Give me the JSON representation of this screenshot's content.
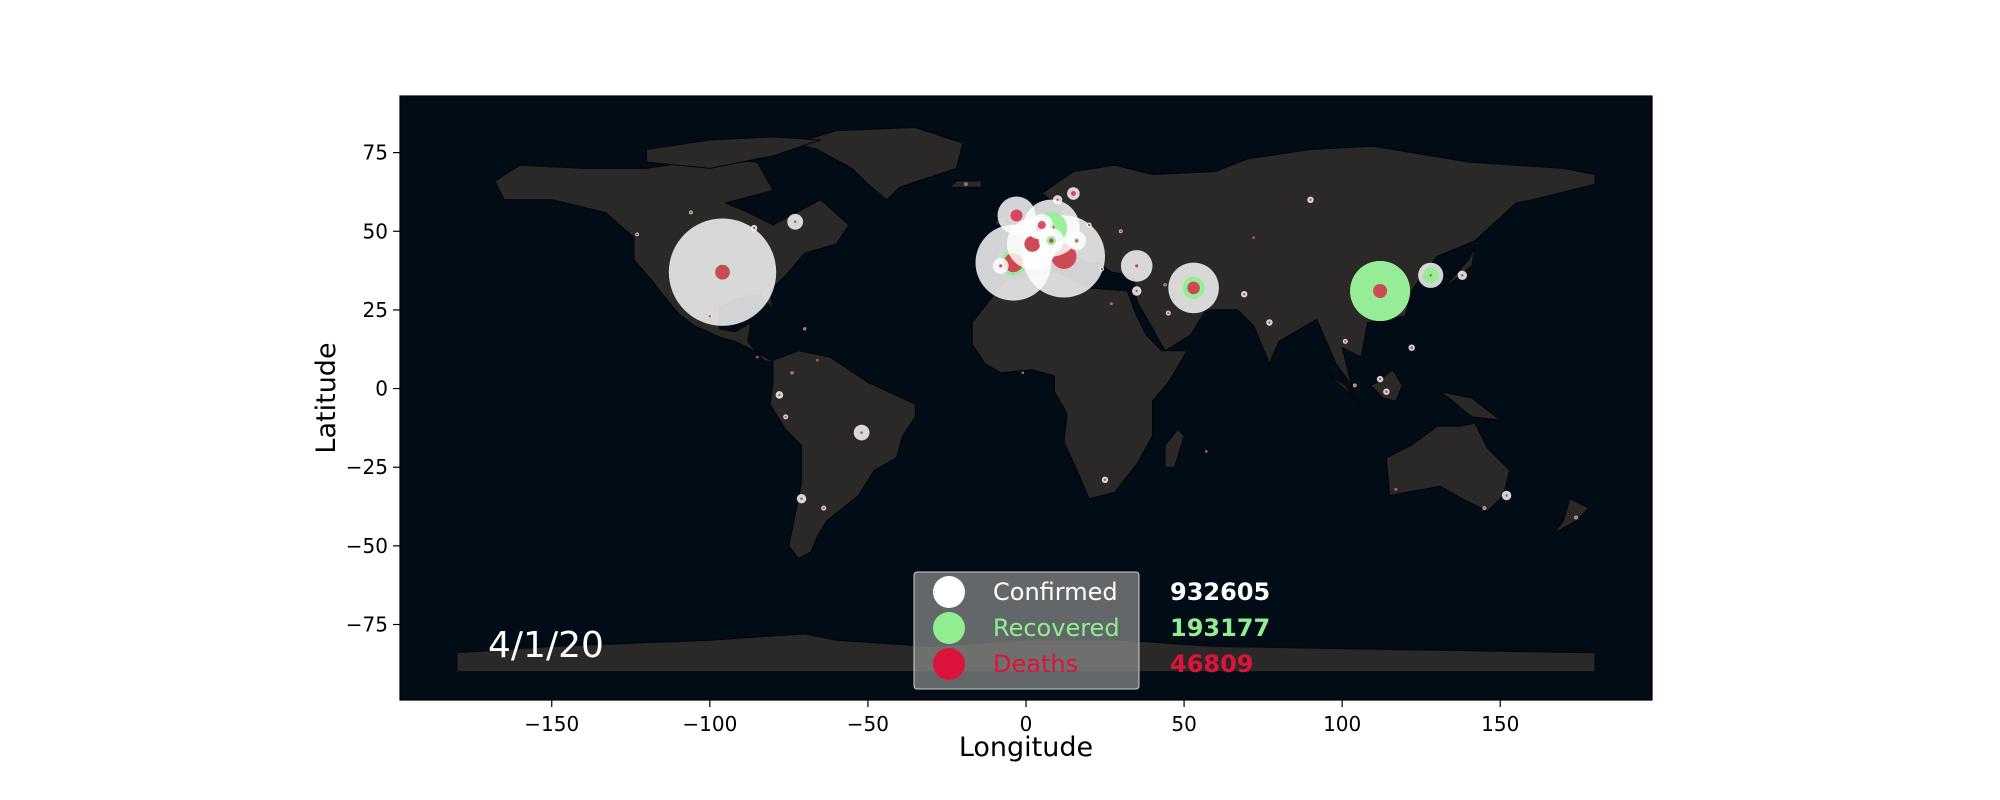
{
  "date_label": "4/1/20",
  "colors": {
    "ocean": "#020c16",
    "land": "#2a2927",
    "borders": "#050505",
    "confirmed": "#ffffff",
    "recovered": "#90ee90",
    "deaths": "#dc143c"
  },
  "legend": [
    {
      "label": "Confirmed",
      "value": "932605",
      "color": "#ffffff"
    },
    {
      "label": "Recovered",
      "value": "193177",
      "color": "#90ee90"
    },
    {
      "label": "Deaths",
      "value": "46809",
      "color": "#dc143c"
    }
  ],
  "chart_data": {
    "type": "scatter",
    "xlabel": "Longitude",
    "ylabel": "Latitude",
    "xlim": [
      -198,
      198
    ],
    "ylim": [
      -99,
      93
    ],
    "xticks": [
      -150,
      -100,
      -50,
      0,
      50,
      100,
      150
    ],
    "yticks": [
      -75,
      -50,
      -25,
      0,
      25,
      50,
      75
    ],
    "bubbles": [
      {
        "lon": -96,
        "lat": 37,
        "confirmed": 17,
        "recovered": 2.5,
        "deaths": 2.3
      },
      {
        "lon": -4,
        "lat": 40,
        "confirmed": 12,
        "recovered": 4,
        "deaths": 3
      },
      {
        "lon": 12,
        "lat": 42,
        "confirmed": 13,
        "recovered": 3.5,
        "deaths": 4
      },
      {
        "lon": 8,
        "lat": 51,
        "confirmed": 9,
        "recovered": 5,
        "deaths": 1
      },
      {
        "lon": 2,
        "lat": 46,
        "confirmed": 8,
        "recovered": 2.5,
        "deaths": 2.5
      },
      {
        "lon": -3,
        "lat": 55,
        "confirmed": 6,
        "recovered": 0.5,
        "deaths": 1.9
      },
      {
        "lon": 112,
        "lat": 31,
        "confirmed": 9.5,
        "recovered": 9.5,
        "deaths": 2.2
      },
      {
        "lon": 53,
        "lat": 32,
        "confirmed": 8,
        "recovered": 3.5,
        "deaths": 2
      },
      {
        "lon": 35,
        "lat": 39,
        "confirmed": 5,
        "recovered": 0.3,
        "deaths": 0.5
      },
      {
        "lon": 128,
        "lat": 36,
        "confirmed": 4,
        "recovered": 2.5,
        "deaths": 0.3
      },
      {
        "lon": 8,
        "lat": 47,
        "confirmed": 4,
        "recovered": 1.5,
        "deaths": 0.7
      },
      {
        "lon": 4,
        "lat": 51,
        "confirmed": 3.5,
        "recovered": 0.5,
        "deaths": 1
      },
      {
        "lon": 5,
        "lat": 52,
        "confirmed": 3.5,
        "recovered": 0.3,
        "deaths": 1.3
      },
      {
        "lon": 16,
        "lat": 47,
        "confirmed": 3,
        "recovered": 0.8,
        "deaths": 0.4
      },
      {
        "lon": -8,
        "lat": 39,
        "confirmed": 2.5,
        "recovered": 0.3,
        "deaths": 0.5
      },
      {
        "lon": 15,
        "lat": 62,
        "confirmed": 2,
        "recovered": 0.3,
        "deaths": 0.8
      },
      {
        "lon": -73,
        "lat": 53,
        "confirmed": 2.5,
        "recovered": 0.5,
        "deaths": 0.3
      },
      {
        "lon": -52,
        "lat": -14,
        "confirmed": 2.5,
        "recovered": 0.3,
        "deaths": 0.4
      },
      {
        "lon": 138,
        "lat": 36,
        "confirmed": 1.5,
        "recovered": 0.5,
        "deaths": 0.2
      },
      {
        "lon": 10,
        "lat": 60,
        "confirmed": 1.5,
        "recovered": 0.2,
        "deaths": 0.2
      },
      {
        "lon": 35,
        "lat": 31,
        "confirmed": 1.5,
        "recovered": 0.3,
        "deaths": 0.1
      },
      {
        "lon": 152,
        "lat": -34,
        "confirmed": 1.5,
        "recovered": 0.2,
        "deaths": 0.2
      },
      {
        "lon": -71,
        "lat": -35,
        "confirmed": 1.5,
        "recovered": 0.5,
        "deaths": 0.1
      },
      {
        "lon": 90,
        "lat": 60,
        "confirmed": 1,
        "recovered": 0.3,
        "deaths": 0.1
      },
      {
        "lon": 112,
        "lat": 3,
        "confirmed": 1,
        "recovered": 0.3,
        "deaths": 0.2
      },
      {
        "lon": 114,
        "lat": -1,
        "confirmed": 1,
        "recovered": 0.1,
        "deaths": 0.4
      },
      {
        "lon": 122,
        "lat": 13,
        "confirmed": 1,
        "recovered": 0.1,
        "deaths": 0.4
      },
      {
        "lon": -78,
        "lat": -2,
        "confirmed": 1.2,
        "recovered": 0.1,
        "deaths": 0.3
      },
      {
        "lon": -106,
        "lat": 56,
        "confirmed": 0.6,
        "recovered": 0.6,
        "deaths": 0.1
      },
      {
        "lon": -76,
        "lat": -9,
        "confirmed": 0.8,
        "recovered": 0.4,
        "deaths": 0.1
      },
      {
        "lon": -64,
        "lat": -38,
        "confirmed": 0.8,
        "recovered": 0.4,
        "deaths": 0.1
      },
      {
        "lon": 77,
        "lat": 21,
        "confirmed": 1,
        "recovered": 0.1,
        "deaths": 0.1
      },
      {
        "lon": 69,
        "lat": 30,
        "confirmed": 1,
        "recovered": 0.1,
        "deaths": 0.1
      },
      {
        "lon": 45,
        "lat": 24,
        "confirmed": 0.8,
        "recovered": 0.2,
        "deaths": 0.1
      },
      {
        "lon": 25,
        "lat": -29,
        "confirmed": 1,
        "recovered": 0.1,
        "deaths": 0.1
      },
      {
        "lon": 105,
        "lat": 61,
        "confirmed": 0,
        "recovered": 0,
        "deaths": 0
      },
      {
        "lon": -86,
        "lat": 51,
        "confirmed": 1,
        "recovered": 0.1,
        "deaths": 0.2
      },
      {
        "lon": -123,
        "lat": 49,
        "confirmed": 0.6,
        "recovered": 0.1,
        "deaths": 0.1
      },
      {
        "lon": 101,
        "lat": 15,
        "confirmed": 0.8,
        "recovered": 0.3,
        "deaths": 0.1
      },
      {
        "lon": 104,
        "lat": 1,
        "confirmed": 0.6,
        "recovered": 0.3,
        "deaths": 0.1
      },
      {
        "lon": 174,
        "lat": -41,
        "confirmed": 0.6,
        "recovered": 0.2,
        "deaths": 0.1
      },
      {
        "lon": 145,
        "lat": -38,
        "confirmed": 0.6,
        "recovered": 0.3,
        "deaths": 0.1
      },
      {
        "lon": 24,
        "lat": 38,
        "confirmed": 0.7,
        "recovered": 0.1,
        "deaths": 0.2
      },
      {
        "lon": 20,
        "lat": 52,
        "confirmed": 0.8,
        "recovered": 0.1,
        "deaths": 0.1
      },
      {
        "lon": 30,
        "lat": 50,
        "confirmed": 0.6,
        "recovered": 0.1,
        "deaths": 0.1
      },
      {
        "lon": -19,
        "lat": 65,
        "confirmed": 0.5,
        "recovered": 0.4,
        "deaths": 0.1
      },
      {
        "lon": -70,
        "lat": 19,
        "confirmed": 0.5,
        "recovered": 0.1,
        "deaths": 0.1
      },
      {
        "lon": -74,
        "lat": 5,
        "confirmed": 0.5,
        "recovered": 0.1,
        "deaths": 0.1
      },
      {
        "lon": -66,
        "lat": 9,
        "confirmed": 0.3,
        "recovered": 0.1,
        "deaths": 0.1
      },
      {
        "lon": -1,
        "lat": 5,
        "confirmed": 0.3,
        "recovered": 0.3,
        "deaths": 0.1
      },
      {
        "lon": 27,
        "lat": 27,
        "confirmed": 0.4,
        "recovered": 0.1,
        "deaths": 0.1
      },
      {
        "lon": 44,
        "lat": 33,
        "confirmed": 0.5,
        "recovered": 0.2,
        "deaths": 0.1
      },
      {
        "lon": 72,
        "lat": 48,
        "confirmed": 0.3,
        "recovered": 0.1,
        "deaths": 0.1
      },
      {
        "lon": -100,
        "lat": 23,
        "confirmed": 0.5,
        "recovered": 0.1,
        "deaths": 0.1
      },
      {
        "lon": -85,
        "lat": 10,
        "confirmed": 0.3,
        "recovered": 0.1,
        "deaths": 0.1
      },
      {
        "lon": 117,
        "lat": -32,
        "confirmed": 0.4,
        "recovered": 0.1,
        "deaths": 0.1
      },
      {
        "lon": 57,
        "lat": -20,
        "confirmed": 0.2,
        "recovered": 0.1,
        "deaths": 0.1
      }
    ]
  }
}
